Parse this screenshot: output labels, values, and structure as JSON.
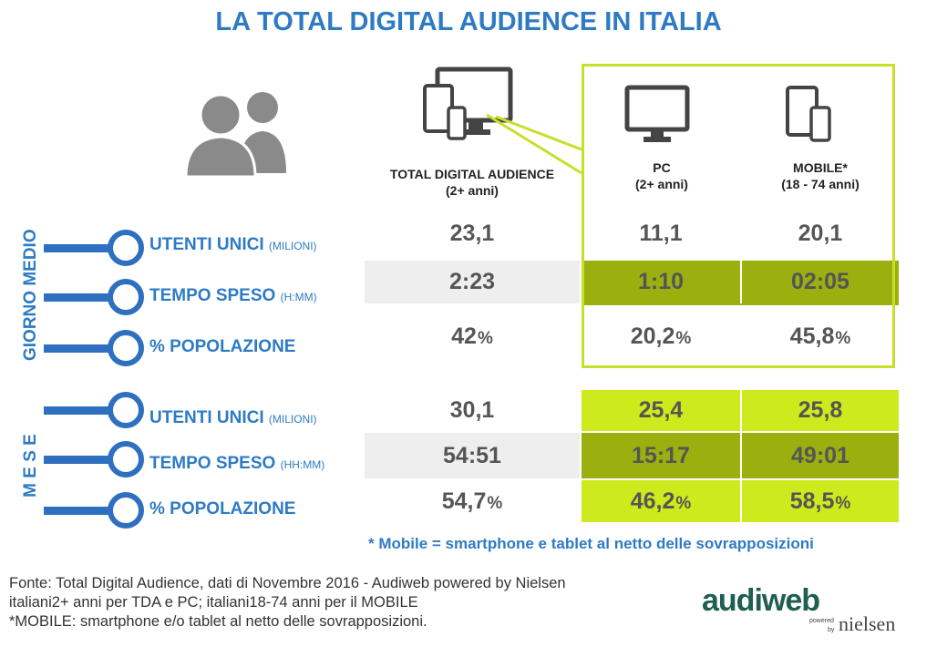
{
  "title": "LA TOTAL DIGITAL AUDIENCE IN ITALIA",
  "columns": [
    {
      "label": "TOTAL DIGITAL AUDIENCE",
      "sub": "(2+ anni)"
    },
    {
      "label": "PC",
      "sub": "(2+ anni)"
    },
    {
      "label": "MOBILE*",
      "sub": "(18 - 74 anni)"
    }
  ],
  "groups": {
    "giorno": "GIORNO MEDIO",
    "mese": "M E S E"
  },
  "row_labels": [
    {
      "label": "UTENTI UNICI",
      "unit": "(MILIONI)"
    },
    {
      "label": "TEMPO SPESO",
      "unit": "(H:MM)"
    },
    {
      "label": "% POPOLAZIONE",
      "unit": ""
    },
    {
      "label": "UTENTI UNICI",
      "unit": "(MILIONI)"
    },
    {
      "label": "TEMPO SPESO",
      "unit": "(HH:MM)"
    },
    {
      "label": "% POPOLAZIONE",
      "unit": ""
    }
  ],
  "rows": [
    {
      "values": [
        "23,1",
        "11,1",
        "20,1"
      ],
      "suffix": ""
    },
    {
      "values": [
        "2:23",
        "1:10",
        "02:05"
      ],
      "suffix": ""
    },
    {
      "values": [
        "42",
        "20,2",
        "45,8"
      ],
      "suffix": "%"
    },
    {
      "values": [
        "30,1",
        "25,4",
        "25,8"
      ],
      "suffix": ""
    },
    {
      "values": [
        "54:51",
        "15:17",
        "49:01"
      ],
      "suffix": ""
    },
    {
      "values": [
        "54,7",
        "46,2",
        "58,5"
      ],
      "suffix": "%"
    }
  ],
  "note": "* Mobile = smartphone e tablet al netto delle sovrapposizioni",
  "source": [
    "Fonte: Total Digital Audience, dati di Novembre 2016 - Audiweb powered by Nielsen",
    "italiani2+ anni per TDA e PC; italiani18-74 anni per il MOBILE",
    "*MOBILE: smartphone e/o tablet al netto delle sovrapposizioni."
  ],
  "logo": {
    "main": "audiweb",
    "powered": "powered",
    "by": "by",
    "partner": "nielsen"
  },
  "colors": {
    "accent": "#2e7bc4",
    "lime": "#ccea1c",
    "olive": "#9bb00e",
    "grey": "#eeeeee",
    "frame": "#c8df2a"
  },
  "icons": [
    "people-icon",
    "devices-icon",
    "monitor-icon",
    "mobile-devices-icon"
  ]
}
